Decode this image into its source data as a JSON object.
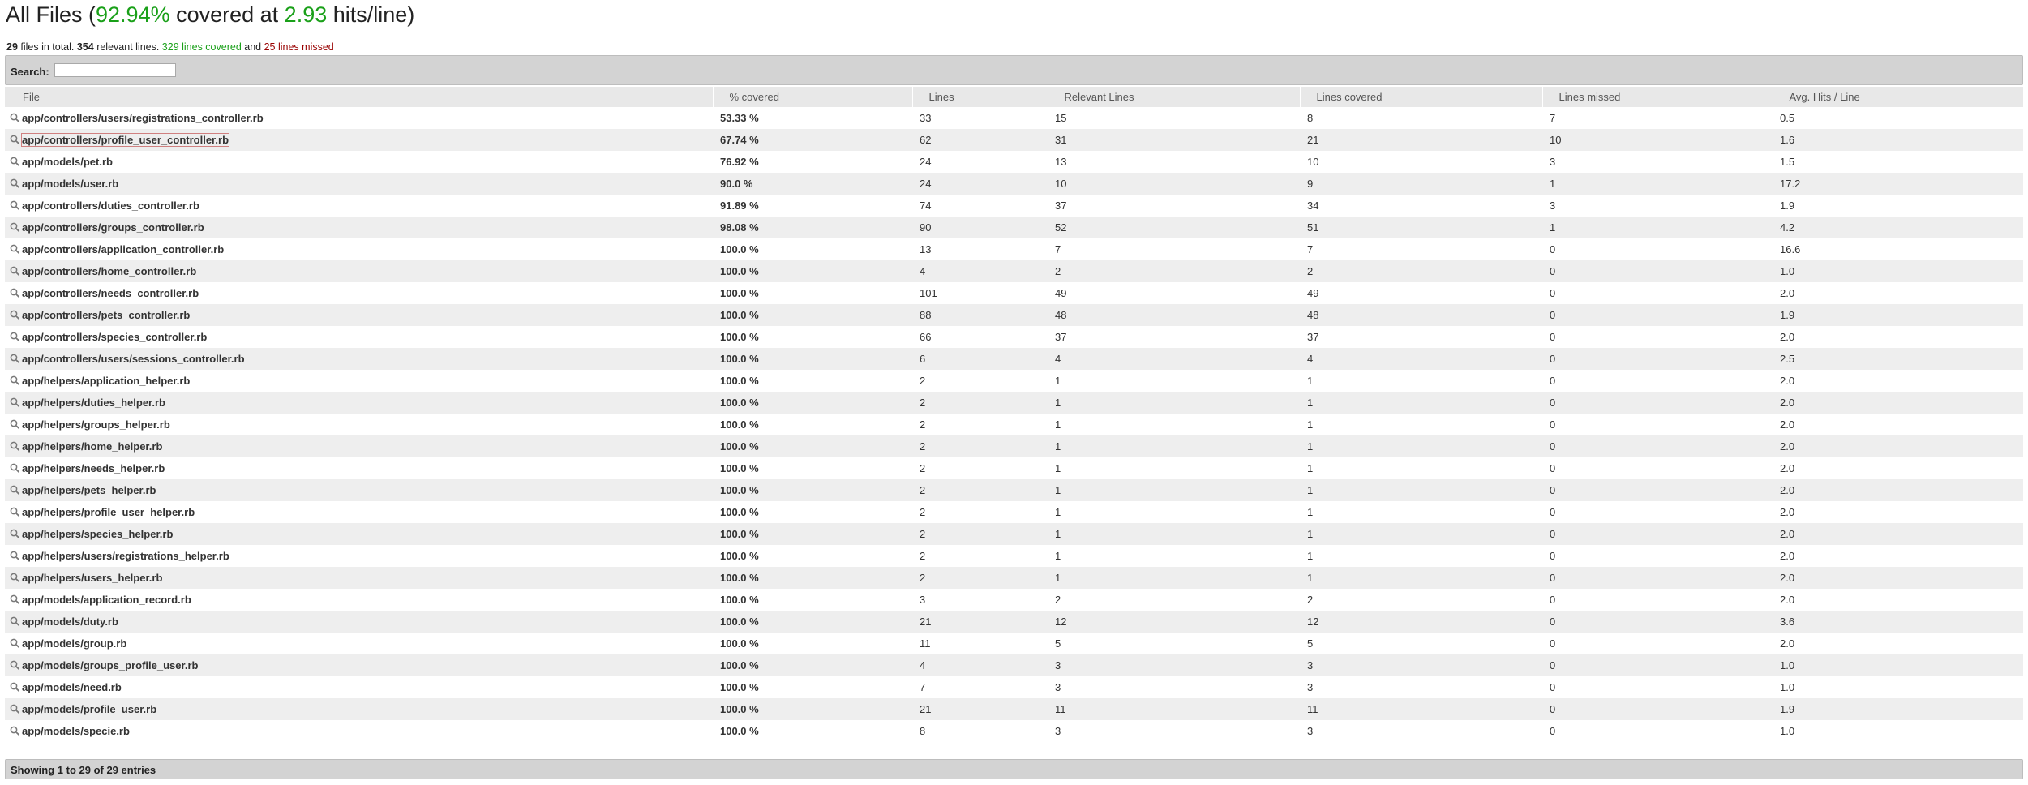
{
  "header": {
    "title_prefix": "All Files (",
    "covered_percent": "92.94%",
    "title_middle": " covered at ",
    "hits_per_line": "2.93",
    "title_suffix": " hits/line)"
  },
  "summary": {
    "files_count": "29",
    "files_text": " files in total. ",
    "relevant_count": "354",
    "relevant_text": " relevant lines. ",
    "covered_text": "329 lines covered",
    "and_text": " and ",
    "missed_text": "25 lines missed"
  },
  "search": {
    "label": "Search:",
    "value": ""
  },
  "table": {
    "headers": [
      "File",
      "% covered",
      "Lines",
      "Relevant Lines",
      "Lines covered",
      "Lines missed",
      "Avg. Hits / Line"
    ],
    "rows": [
      {
        "file": "app/controllers/users/registrations_controller.rb",
        "pct": "53.33 %",
        "status": "red",
        "lines": "33",
        "relevant": "15",
        "covered": "8",
        "missed": "7",
        "avg": "0.5"
      },
      {
        "file": "app/controllers/profile_user_controller.rb",
        "pct": "67.74 %",
        "status": "red",
        "lines": "62",
        "relevant": "31",
        "covered": "21",
        "missed": "10",
        "avg": "1.6"
      },
      {
        "file": "app/models/pet.rb",
        "pct": "76.92 %",
        "status": "red",
        "lines": "24",
        "relevant": "13",
        "covered": "10",
        "missed": "3",
        "avg": "1.5"
      },
      {
        "file": "app/models/user.rb",
        "pct": "90.0 %",
        "status": "yellow",
        "lines": "24",
        "relevant": "10",
        "covered": "9",
        "missed": "1",
        "avg": "17.2"
      },
      {
        "file": "app/controllers/duties_controller.rb",
        "pct": "91.89 %",
        "status": "green",
        "lines": "74",
        "relevant": "37",
        "covered": "34",
        "missed": "3",
        "avg": "1.9"
      },
      {
        "file": "app/controllers/groups_controller.rb",
        "pct": "98.08 %",
        "status": "green",
        "lines": "90",
        "relevant": "52",
        "covered": "51",
        "missed": "1",
        "avg": "4.2"
      },
      {
        "file": "app/controllers/application_controller.rb",
        "pct": "100.0 %",
        "status": "green",
        "lines": "13",
        "relevant": "7",
        "covered": "7",
        "missed": "0",
        "avg": "16.6"
      },
      {
        "file": "app/controllers/home_controller.rb",
        "pct": "100.0 %",
        "status": "green",
        "lines": "4",
        "relevant": "2",
        "covered": "2",
        "missed": "0",
        "avg": "1.0"
      },
      {
        "file": "app/controllers/needs_controller.rb",
        "pct": "100.0 %",
        "status": "green",
        "lines": "101",
        "relevant": "49",
        "covered": "49",
        "missed": "0",
        "avg": "2.0"
      },
      {
        "file": "app/controllers/pets_controller.rb",
        "pct": "100.0 %",
        "status": "green",
        "lines": "88",
        "relevant": "48",
        "covered": "48",
        "missed": "0",
        "avg": "1.9"
      },
      {
        "file": "app/controllers/species_controller.rb",
        "pct": "100.0 %",
        "status": "green",
        "lines": "66",
        "relevant": "37",
        "covered": "37",
        "missed": "0",
        "avg": "2.0"
      },
      {
        "file": "app/controllers/users/sessions_controller.rb",
        "pct": "100.0 %",
        "status": "green",
        "lines": "6",
        "relevant": "4",
        "covered": "4",
        "missed": "0",
        "avg": "2.5"
      },
      {
        "file": "app/helpers/application_helper.rb",
        "pct": "100.0 %",
        "status": "green",
        "lines": "2",
        "relevant": "1",
        "covered": "1",
        "missed": "0",
        "avg": "2.0"
      },
      {
        "file": "app/helpers/duties_helper.rb",
        "pct": "100.0 %",
        "status": "green",
        "lines": "2",
        "relevant": "1",
        "covered": "1",
        "missed": "0",
        "avg": "2.0"
      },
      {
        "file": "app/helpers/groups_helper.rb",
        "pct": "100.0 %",
        "status": "green",
        "lines": "2",
        "relevant": "1",
        "covered": "1",
        "missed": "0",
        "avg": "2.0"
      },
      {
        "file": "app/helpers/home_helper.rb",
        "pct": "100.0 %",
        "status": "green",
        "lines": "2",
        "relevant": "1",
        "covered": "1",
        "missed": "0",
        "avg": "2.0"
      },
      {
        "file": "app/helpers/needs_helper.rb",
        "pct": "100.0 %",
        "status": "green",
        "lines": "2",
        "relevant": "1",
        "covered": "1",
        "missed": "0",
        "avg": "2.0"
      },
      {
        "file": "app/helpers/pets_helper.rb",
        "pct": "100.0 %",
        "status": "green",
        "lines": "2",
        "relevant": "1",
        "covered": "1",
        "missed": "0",
        "avg": "2.0"
      },
      {
        "file": "app/helpers/profile_user_helper.rb",
        "pct": "100.0 %",
        "status": "green",
        "lines": "2",
        "relevant": "1",
        "covered": "1",
        "missed": "0",
        "avg": "2.0"
      },
      {
        "file": "app/helpers/species_helper.rb",
        "pct": "100.0 %",
        "status": "green",
        "lines": "2",
        "relevant": "1",
        "covered": "1",
        "missed": "0",
        "avg": "2.0"
      },
      {
        "file": "app/helpers/users/registrations_helper.rb",
        "pct": "100.0 %",
        "status": "green",
        "lines": "2",
        "relevant": "1",
        "covered": "1",
        "missed": "0",
        "avg": "2.0"
      },
      {
        "file": "app/helpers/users_helper.rb",
        "pct": "100.0 %",
        "status": "green",
        "lines": "2",
        "relevant": "1",
        "covered": "1",
        "missed": "0",
        "avg": "2.0"
      },
      {
        "file": "app/models/application_record.rb",
        "pct": "100.0 %",
        "status": "green",
        "lines": "3",
        "relevant": "2",
        "covered": "2",
        "missed": "0",
        "avg": "2.0"
      },
      {
        "file": "app/models/duty.rb",
        "pct": "100.0 %",
        "status": "green",
        "lines": "21",
        "relevant": "12",
        "covered": "12",
        "missed": "0",
        "avg": "3.6"
      },
      {
        "file": "app/models/group.rb",
        "pct": "100.0 %",
        "status": "green",
        "lines": "11",
        "relevant": "5",
        "covered": "5",
        "missed": "0",
        "avg": "2.0"
      },
      {
        "file": "app/models/groups_profile_user.rb",
        "pct": "100.0 %",
        "status": "green",
        "lines": "4",
        "relevant": "3",
        "covered": "3",
        "missed": "0",
        "avg": "1.0"
      },
      {
        "file": "app/models/need.rb",
        "pct": "100.0 %",
        "status": "green",
        "lines": "7",
        "relevant": "3",
        "covered": "3",
        "missed": "0",
        "avg": "1.0"
      },
      {
        "file": "app/models/profile_user.rb",
        "pct": "100.0 %",
        "status": "green",
        "lines": "21",
        "relevant": "11",
        "covered": "11",
        "missed": "0",
        "avg": "1.9"
      },
      {
        "file": "app/models/specie.rb",
        "pct": "100.0 %",
        "status": "green",
        "lines": "8",
        "relevant": "3",
        "covered": "3",
        "missed": "0",
        "avg": "1.0"
      }
    ]
  },
  "footer": {
    "text": "Showing 1 to 29 of 29 entries"
  },
  "colors": {
    "green": "#1aa019",
    "red": "#990000",
    "yellow": "#e6b317",
    "header_bg": "#e8e8e8",
    "bar_bg": "#d3d3d3"
  },
  "icons": {
    "file_row": "magnifier-icon"
  }
}
